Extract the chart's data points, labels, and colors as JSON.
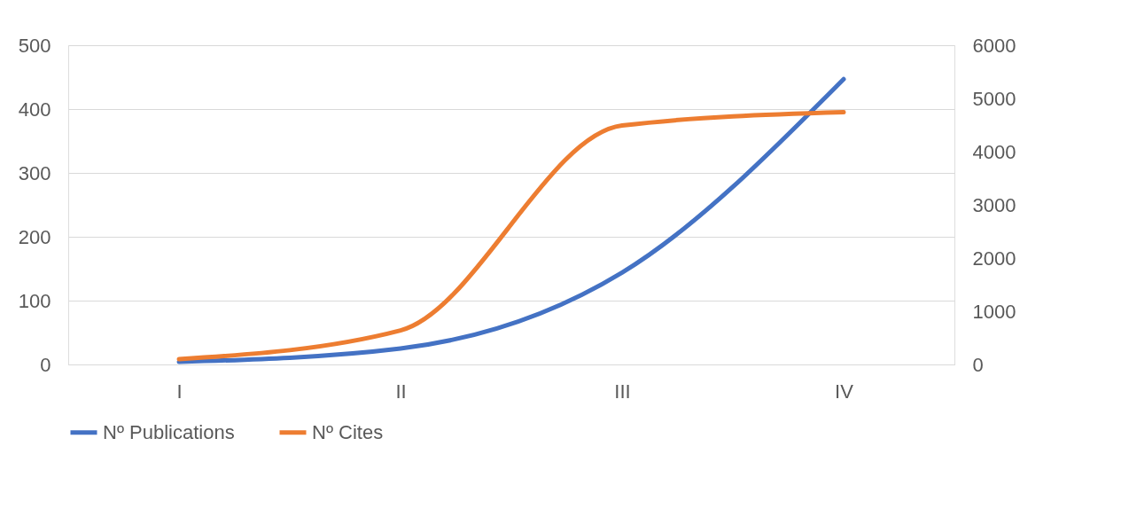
{
  "chart_data": {
    "type": "line",
    "categories": [
      "I",
      "II",
      "III",
      "IV"
    ],
    "series": [
      {
        "name": "Nº Publications",
        "color": "#4472c4",
        "values": [
          4,
          25,
          144,
          447
        ]
      },
      {
        "name": "Nº Cites",
        "color": "#ed7d31",
        "values": [
          100,
          640,
          4490,
          4740
        ],
        "axis": "y2"
      }
    ],
    "ylim": [
      0,
      500
    ],
    "yticks": [
      0,
      100,
      200,
      300,
      400,
      500
    ],
    "y2lim": [
      0,
      6000
    ],
    "y2ticks": [
      0,
      1000,
      2000,
      3000,
      4000,
      5000,
      6000
    ],
    "grid": "y",
    "legend": "bottom",
    "marker": "none",
    "line_style": "solid"
  }
}
